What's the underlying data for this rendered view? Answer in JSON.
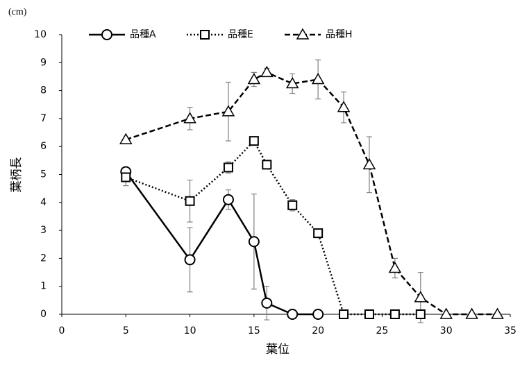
{
  "chart_data": {
    "type": "line",
    "y_unit": "(cm)",
    "y_label": "葉柄長",
    "x_label": "葉位",
    "xlim": [
      0,
      35
    ],
    "xticks": [
      0,
      5,
      10,
      15,
      20,
      25,
      30,
      35
    ],
    "ylim": [
      0,
      10
    ],
    "yticks": [
      0,
      1,
      2,
      3,
      4,
      5,
      6,
      7,
      8,
      9,
      10
    ],
    "legend": "top",
    "series": [
      {
        "name": "品種A",
        "color": "#000000",
        "line_style": "solid",
        "marker": "circle",
        "x": [
          5,
          10,
          13,
          15,
          16,
          18,
          20
        ],
        "values": [
          5.1,
          1.95,
          4.1,
          2.6,
          0.4,
          0,
          0
        ],
        "errors": [
          null,
          1.15,
          0.35,
          1.7,
          0.6,
          null,
          null
        ]
      },
      {
        "name": "品種E",
        "color": "#000000",
        "line_style": "dotted",
        "marker": "square",
        "x": [
          5,
          10,
          13,
          15,
          16,
          18,
          20,
          22,
          24,
          26,
          28
        ],
        "values": [
          4.9,
          4.05,
          5.25,
          6.2,
          5.35,
          3.9,
          2.9,
          0,
          0,
          0,
          0
        ],
        "errors": [
          0.3,
          0.75,
          0.2,
          null,
          0.1,
          0.2,
          null,
          null,
          null,
          null,
          null
        ]
      },
      {
        "name": "品種H",
        "color": "#000000",
        "line_style": "dashed",
        "marker": "triangle",
        "x": [
          5,
          10,
          13,
          15,
          16,
          18,
          20,
          22,
          24,
          26,
          28,
          30,
          32,
          34
        ],
        "values": [
          6.25,
          7.0,
          7.25,
          8.4,
          8.65,
          8.25,
          8.4,
          7.4,
          5.35,
          1.65,
          0.6,
          0,
          0,
          0
        ],
        "errors": [
          null,
          0.4,
          1.05,
          0.25,
          0.15,
          0.35,
          0.7,
          0.55,
          1.0,
          0.35,
          0.9,
          null,
          null,
          null
        ]
      }
    ]
  }
}
